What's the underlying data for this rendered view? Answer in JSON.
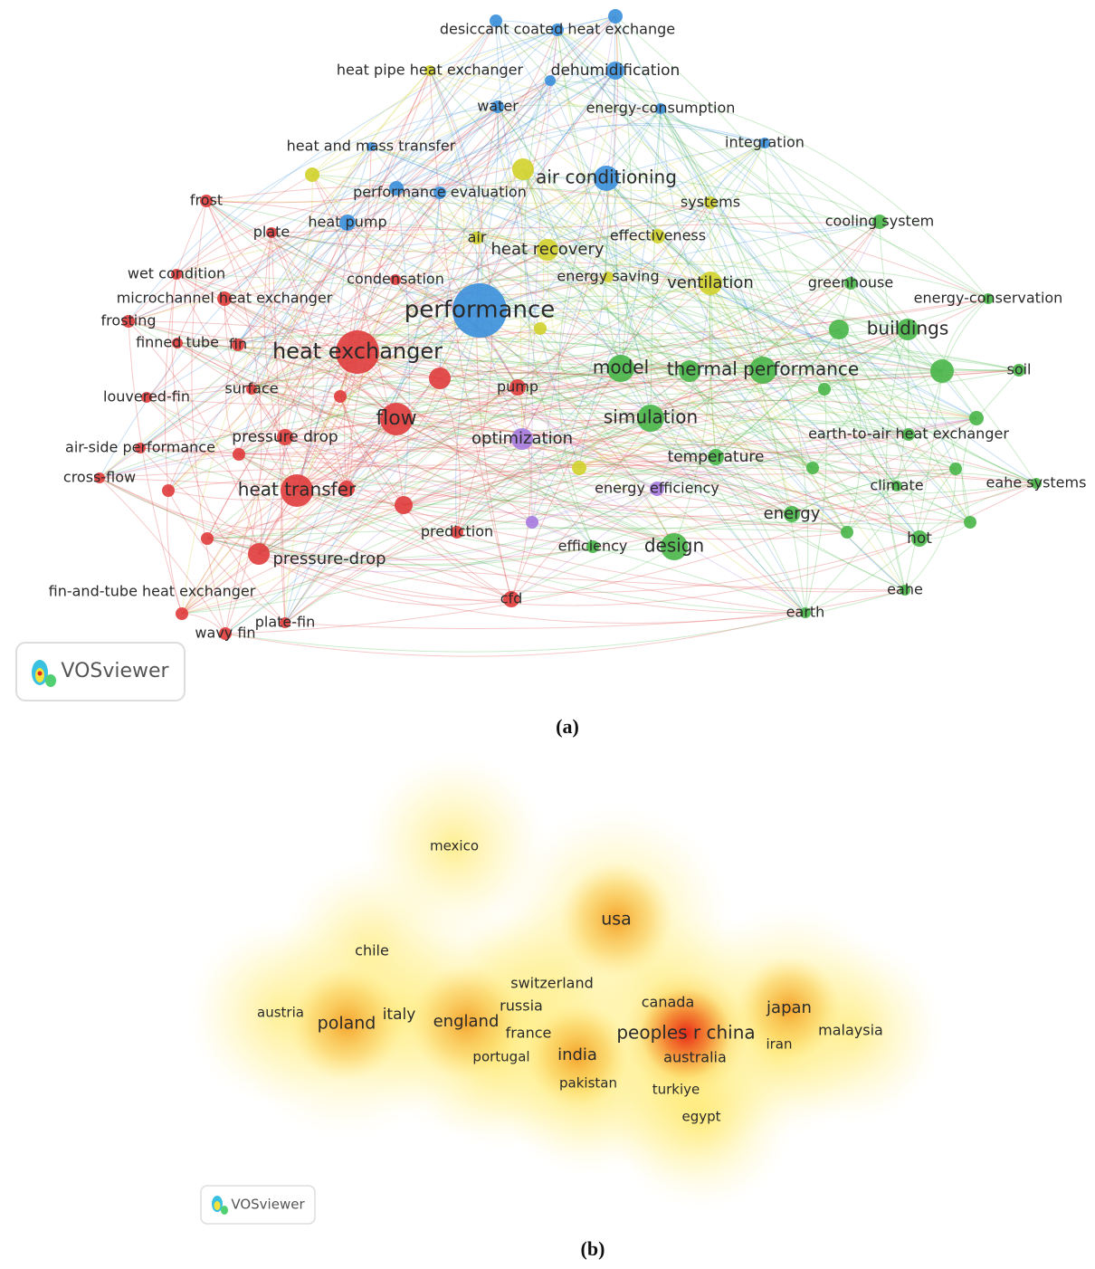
{
  "panel_a": {
    "nodes": [
      {
        "label": "desiccant coated heat exchange",
        "color": "#3a8fdc"
      },
      {
        "label": "heat pipe heat exchanger",
        "color": "#d2d22c"
      },
      {
        "label": "dehumidification",
        "color": "#3a8fdc"
      },
      {
        "label": "water",
        "color": "#3a8fdc"
      },
      {
        "label": "energy-consumption",
        "color": "#3a8fdc"
      },
      {
        "label": "heat and mass transfer",
        "color": "#3a8fdc"
      },
      {
        "label": "integration",
        "color": "#3a8fdc"
      },
      {
        "label": "air conditioning",
        "color": "#3a8fdc"
      },
      {
        "label": "performance evaluation",
        "color": "#3a8fdc"
      },
      {
        "label": "systems",
        "color": "#d2d22c"
      },
      {
        "label": "frost",
        "color": "#e03c3c"
      },
      {
        "label": "cooling system",
        "color": "#48b648"
      },
      {
        "label": "heat pump",
        "color": "#3a8fdc"
      },
      {
        "label": "plate",
        "color": "#e03c3c"
      },
      {
        "label": "effectiveness",
        "color": "#d2d22c"
      },
      {
        "label": "air",
        "color": "#d2d22c"
      },
      {
        "label": "heat recovery",
        "color": "#d2d22c"
      },
      {
        "label": "wet condition",
        "color": "#e03c3c"
      },
      {
        "label": "condensation",
        "color": "#e03c3c"
      },
      {
        "label": "energy saving",
        "color": "#d2d22c"
      },
      {
        "label": "ventilation",
        "color": "#d2d22c"
      },
      {
        "label": "greenhouse",
        "color": "#48b648"
      },
      {
        "label": "energy-conservation",
        "color": "#48b648"
      },
      {
        "label": "microchannel heat exchanger",
        "color": "#e03c3c"
      },
      {
        "label": "performance",
        "color": "#3a8fdc"
      },
      {
        "label": "frosting",
        "color": "#e03c3c"
      },
      {
        "label": "buildings",
        "color": "#48b648"
      },
      {
        "label": "finned tube",
        "color": "#e03c3c"
      },
      {
        "label": "fin",
        "color": "#e03c3c"
      },
      {
        "label": "heat exchanger",
        "color": "#e03c3c"
      },
      {
        "label": "model",
        "color": "#48b648"
      },
      {
        "label": "thermal performance",
        "color": "#48b648"
      },
      {
        "label": "soil",
        "color": "#48b648"
      },
      {
        "label": "louvered-fin",
        "color": "#e03c3c"
      },
      {
        "label": "surface",
        "color": "#e03c3c"
      },
      {
        "label": "pump",
        "color": "#e03c3c"
      },
      {
        "label": "flow",
        "color": "#e03c3c"
      },
      {
        "label": "simulation",
        "color": "#48b648"
      },
      {
        "label": "earth-to-air heat exchanger",
        "color": "#48b648"
      },
      {
        "label": "pressure drop",
        "color": "#e03c3c"
      },
      {
        "label": "optimization",
        "color": "#a67be0"
      },
      {
        "label": "air-side performance",
        "color": "#e03c3c"
      },
      {
        "label": "temperature",
        "color": "#48b648"
      },
      {
        "label": "cross-flow",
        "color": "#e03c3c"
      },
      {
        "label": "energy efficiency",
        "color": "#a67be0"
      },
      {
        "label": "climate",
        "color": "#48b648"
      },
      {
        "label": "eahe systems",
        "color": "#48b648"
      },
      {
        "label": "heat transfer",
        "color": "#e03c3c"
      },
      {
        "label": "energy",
        "color": "#48b648"
      },
      {
        "label": "prediction",
        "color": "#e03c3c"
      },
      {
        "label": "efficiency",
        "color": "#48b648"
      },
      {
        "label": "design",
        "color": "#48b648"
      },
      {
        "label": "hot",
        "color": "#48b648"
      },
      {
        "label": "pressure-drop",
        "color": "#e03c3c"
      },
      {
        "label": "fin-and-tube heat exchanger",
        "color": "#e03c3c"
      },
      {
        "label": "cfd",
        "color": "#e03c3c"
      },
      {
        "label": "eahe",
        "color": "#48b648"
      },
      {
        "label": "earth",
        "color": "#48b648"
      },
      {
        "label": "plate-fin",
        "color": "#e03c3c"
      },
      {
        "label": "wavy fin",
        "color": "#e03c3c"
      }
    ],
    "logo": "VOSviewer",
    "caption": "(a)"
  },
  "panel_b": {
    "items": [
      {
        "label": "mexico"
      },
      {
        "label": "usa"
      },
      {
        "label": "chile"
      },
      {
        "label": "switzerland"
      },
      {
        "label": "austria"
      },
      {
        "label": "poland"
      },
      {
        "label": "italy"
      },
      {
        "label": "england"
      },
      {
        "label": "russia"
      },
      {
        "label": "canada"
      },
      {
        "label": "japan"
      },
      {
        "label": "france"
      },
      {
        "label": "peoples r china"
      },
      {
        "label": "malaysia"
      },
      {
        "label": "portugal"
      },
      {
        "label": "india"
      },
      {
        "label": "australia"
      },
      {
        "label": "iran"
      },
      {
        "label": "pakistan"
      },
      {
        "label": "turkiye"
      },
      {
        "label": "egypt"
      }
    ],
    "logo": "VOSviewer",
    "caption": "(b)"
  }
}
